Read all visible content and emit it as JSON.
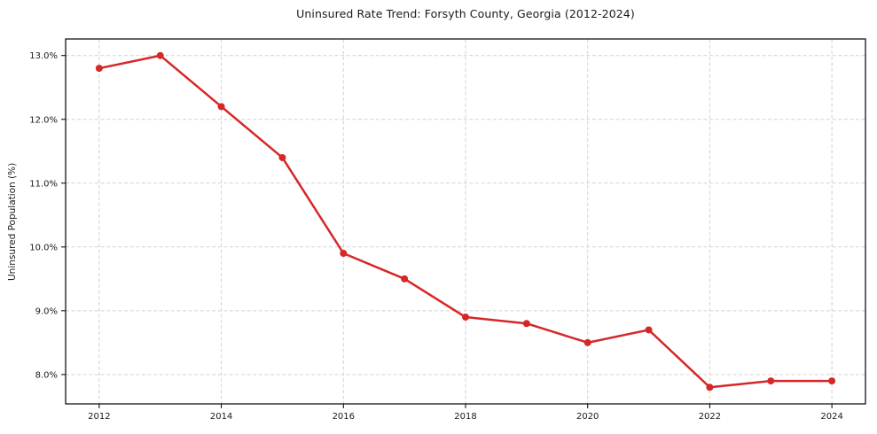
{
  "chart_data": {
    "type": "line",
    "title": "Uninsured Rate Trend: Forsyth County, Georgia (2012-2024)",
    "xlabel": "",
    "ylabel": "Uninsured Population (%)",
    "x": [
      2012,
      2013,
      2014,
      2015,
      2016,
      2017,
      2018,
      2019,
      2020,
      2021,
      2022,
      2023,
      2024
    ],
    "series": [
      {
        "name": "Uninsured Rate",
        "values": [
          12.8,
          13.0,
          12.2,
          11.4,
          9.9,
          9.5,
          8.9,
          8.8,
          8.5,
          8.7,
          7.8,
          7.9,
          7.9
        ]
      }
    ],
    "xticks": [
      2012,
      2014,
      2016,
      2018,
      2020,
      2022,
      2024
    ],
    "xtick_labels": [
      "2012",
      "2014",
      "2016",
      "2018",
      "2020",
      "2022",
      "2024"
    ],
    "yticks": [
      8.0,
      9.0,
      10.0,
      11.0,
      12.0,
      13.0
    ],
    "ytick_labels": [
      "8.0%",
      "9.0%",
      "10.0%",
      "11.0%",
      "12.0%",
      "13.0%"
    ],
    "xlim": [
      2011.45,
      2024.55
    ],
    "ylim": [
      7.54,
      13.26
    ],
    "grid": true,
    "grid_style": "dashed",
    "legend": "none",
    "colors": {
      "line": "#d62728",
      "marker": "#d62728",
      "grid": "#d2d2d2",
      "spine": "#000000",
      "text": "#1a1a1a"
    }
  }
}
